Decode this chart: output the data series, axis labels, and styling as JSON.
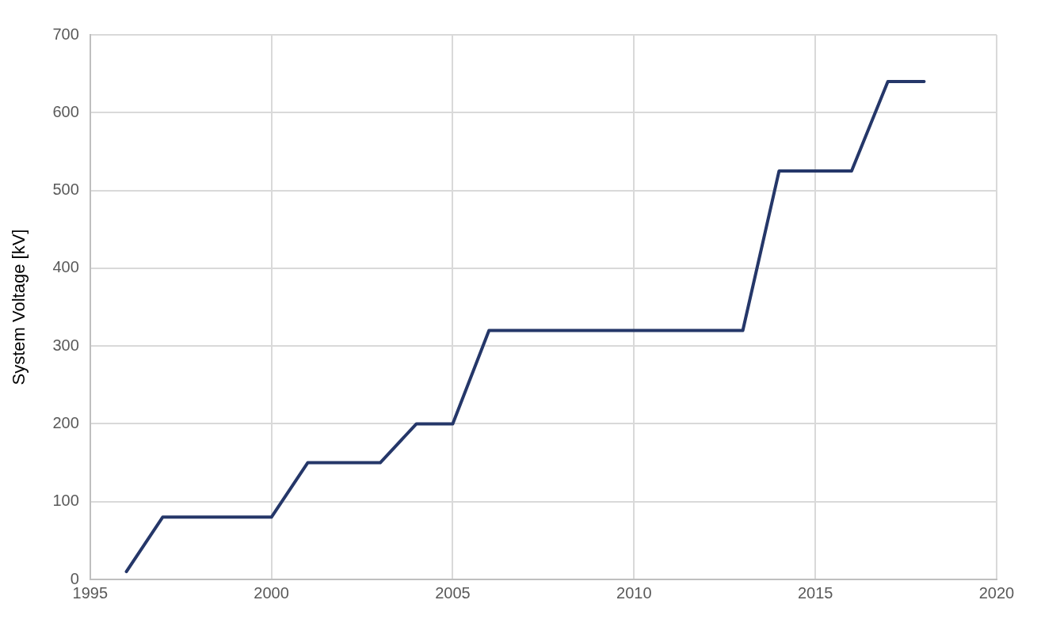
{
  "chart_data": {
    "type": "line",
    "ylabel": "System Voltage [kV]",
    "x": [
      1996,
      1997,
      2000,
      2001,
      2003,
      2004,
      2005,
      2006,
      2013,
      2014,
      2016,
      2017,
      2018
    ],
    "series": [
      {
        "color": "#253769",
        "values": [
          10,
          80,
          80,
          150,
          150,
          200,
          200,
          320,
          320,
          525,
          525,
          640,
          640
        ]
      }
    ],
    "xlim": [
      1995,
      2020
    ],
    "xticks": [
      1995,
      2000,
      2005,
      2010,
      2015,
      2020
    ],
    "ylim": [
      0,
      700
    ],
    "yticks": [
      0,
      100,
      200,
      300,
      400,
      500,
      600,
      700
    ],
    "grid": true,
    "legend": false,
    "marker": "none",
    "line_style": "solid"
  }
}
